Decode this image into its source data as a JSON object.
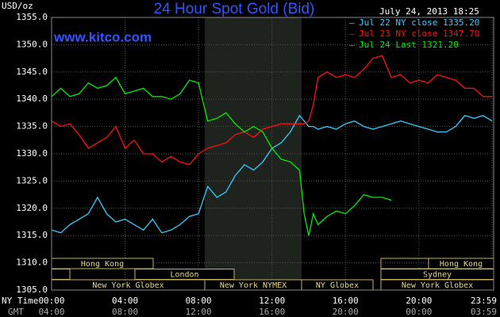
{
  "chart_data": {
    "type": "line",
    "title": "24 Hour Spot Gold (Bid)",
    "date": "July 24, 2013 18:25",
    "site": "www.kitco.com",
    "y_label": "USD/oz",
    "x_row_label": "NY Time",
    "x2_row_label": "GMT",
    "x": [
      0,
      0.5,
      1,
      1.5,
      2,
      2.5,
      3,
      3.5,
      4,
      4.5,
      5,
      5.5,
      6,
      6.5,
      7,
      7.5,
      8,
      8.5,
      9,
      9.5,
      10,
      10.5,
      11,
      11.5,
      12,
      12.5,
      13,
      13.5,
      13.75,
      14,
      14.25,
      14.5,
      15,
      15.5,
      16,
      16.5,
      17,
      17.5,
      18,
      18.5,
      19,
      19.5,
      20,
      20.5,
      21,
      21.5,
      22,
      22.5,
      23,
      23.5,
      23.983
    ],
    "series": [
      {
        "name": "Jul 22 NY close 1335.20",
        "color": "#33ccff",
        "values": [
          1316,
          1315.5,
          1317,
          1318,
          1319,
          1322,
          1319,
          1317.5,
          1318,
          1317,
          1316,
          1318,
          1315.5,
          1316,
          1317,
          1318.5,
          1319,
          1324,
          1322,
          1323,
          1326,
          1328,
          1327,
          1328.5,
          1331,
          1332,
          1334,
          1337,
          1336,
          1335,
          1335,
          1334.5,
          1335,
          1334.5,
          1335.5,
          1336,
          1335,
          1334.5,
          1335,
          1335.5,
          1336,
          1335.5,
          1335,
          1334.5,
          1334,
          1334,
          1335,
          1337,
          1336.5,
          1337,
          1336
        ]
      },
      {
        "name": "Jul 23 NY close 1347.70",
        "color": "#ff1010",
        "values": [
          1336,
          1335,
          1335.5,
          1333.5,
          1331,
          1332,
          1333,
          1335,
          1331,
          1332.5,
          1330,
          1330,
          1328.5,
          1329.5,
          1328.5,
          1328,
          1330,
          1331,
          1331.5,
          1332,
          1333.5,
          1334,
          1333,
          1334.5,
          1335,
          1335.5,
          1335.5,
          1335.5,
          1335.5,
          1336,
          1339,
          1344,
          1345,
          1344,
          1344.5,
          1344,
          1345.5,
          1347.5,
          1348,
          1344,
          1344.5,
          1343,
          1343.5,
          1343,
          1344.5,
          1344,
          1343.5,
          1342,
          1342,
          1340.5,
          1340.5
        ]
      },
      {
        "name": "Jul 24 Last 1321.20",
        "color": "#00ee00",
        "values": [
          1340.5,
          1342,
          1340.5,
          1341,
          1343,
          1342,
          1342.5,
          1344,
          1341,
          1341.5,
          1342,
          1340.5,
          1340.5,
          1340,
          1341,
          1343.5,
          1343,
          1336,
          1336.5,
          1337.5,
          1335.5,
          1334,
          1335,
          1334,
          1331,
          1329,
          1328.5,
          1327,
          1319,
          1315,
          1319,
          1317,
          1318.5,
          1319.5,
          1319,
          1320.5,
          1322.5,
          1322,
          1322,
          1321.5,
          null,
          null,
          null,
          null,
          null,
          null,
          null,
          null,
          null,
          null,
          null
        ]
      }
    ],
    "xlim": [
      0,
      23.983
    ],
    "xticks": [
      {
        "value": 0,
        "label": "00:00"
      },
      {
        "value": 4,
        "label": "04:00"
      },
      {
        "value": 8,
        "label": "08:00"
      },
      {
        "value": 12,
        "label": "12:00"
      },
      {
        "value": 16,
        "label": "16:00"
      },
      {
        "value": 20,
        "label": "20:00"
      },
      {
        "value": 23.983,
        "label": "23:59"
      }
    ],
    "x2ticks": [
      "04:00",
      "08:00",
      "12:00",
      "16:00",
      "20:00",
      "00:00",
      "03:59"
    ],
    "ylim": [
      1305,
      1355
    ],
    "yticks": [
      {
        "value": 1305,
        "label": "1305.0"
      },
      {
        "value": 1310,
        "label": "1310.0"
      },
      {
        "value": 1315,
        "label": "1315.0"
      },
      {
        "value": 1320,
        "label": "1320.0"
      },
      {
        "value": 1325,
        "label": "1325.0"
      },
      {
        "value": 1330,
        "label": "1330.0"
      },
      {
        "value": 1335,
        "label": "1335.0"
      },
      {
        "value": 1340,
        "label": "1340.0"
      },
      {
        "value": 1345,
        "label": "1345.0"
      },
      {
        "value": 1350,
        "label": "1350.0"
      },
      {
        "value": 1355,
        "label": "1355.0"
      }
    ],
    "grid": true,
    "sessions": [
      "Hong Kong",
      "London",
      "New York Globex",
      "New York NYMEX",
      "NY Globex",
      "Sydney",
      "Hong Kong",
      "New York Globex"
    ]
  }
}
